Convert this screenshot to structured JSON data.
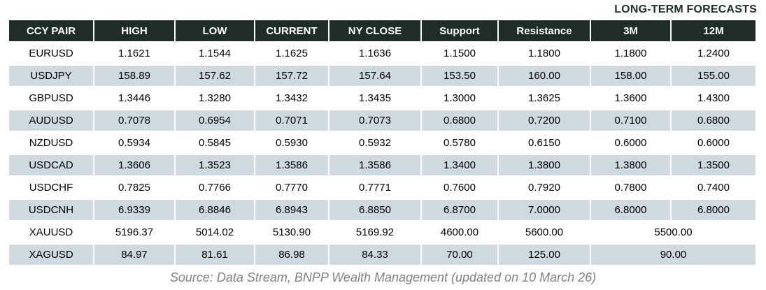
{
  "title": "LONG-TERM FORECASTS",
  "table": {
    "headers": [
      "CCY PAIR",
      "HIGH",
      "LOW",
      "CURRENT",
      "NY CLOSE",
      "Support",
      "Resistance",
      "3M",
      "12M"
    ],
    "rows": [
      {
        "cells": [
          "EURUSD",
          "1.1621",
          "1.1544",
          "1.1625",
          "1.1636",
          "1.1500",
          "1.1800",
          "1.1800",
          "1.2400"
        ],
        "merged_forecast": false
      },
      {
        "cells": [
          "USDJPY",
          "158.89",
          "157.62",
          "157.72",
          "157.64",
          "153.50",
          "160.00",
          "158.00",
          "155.00"
        ],
        "merged_forecast": false
      },
      {
        "cells": [
          "GBPUSD",
          "1.3446",
          "1.3280",
          "1.3432",
          "1.3435",
          "1.3000",
          "1.3625",
          "1.3600",
          "1.4300"
        ],
        "merged_forecast": false
      },
      {
        "cells": [
          "AUDUSD",
          "0.7078",
          "0.6954",
          "0.7071",
          "0.7073",
          "0.6800",
          "0.7200",
          "0.7100",
          "0.6800"
        ],
        "merged_forecast": false
      },
      {
        "cells": [
          "NZDUSD",
          "0.5934",
          "0.5845",
          "0.5930",
          "0.5932",
          "0.5780",
          "0.6150",
          "0.6000",
          "0.6000"
        ],
        "merged_forecast": false
      },
      {
        "cells": [
          "USDCAD",
          "1.3606",
          "1.3523",
          "1.3586",
          "1.3586",
          "1.3400",
          "1.3800",
          "1.3800",
          "1.3500"
        ],
        "merged_forecast": false
      },
      {
        "cells": [
          "USDCHF",
          "0.7825",
          "0.7766",
          "0.7770",
          "0.7771",
          "0.7600",
          "0.7920",
          "0.7800",
          "0.7400"
        ],
        "merged_forecast": false
      },
      {
        "cells": [
          "USDCNH",
          "6.9339",
          "6.8846",
          "6.8943",
          "6.8850",
          "6.8700",
          "7.0000",
          "6.8000",
          "6.8000"
        ],
        "merged_forecast": false
      },
      {
        "cells": [
          "XAUUSD",
          "5196.37",
          "5014.02",
          "5130.90",
          "5169.92",
          "4600.00",
          "5600.00",
          "5500.00"
        ],
        "merged_forecast": true
      },
      {
        "cells": [
          "XAGUSD",
          "84.97",
          "81.61",
          "86.98",
          "84.33",
          "70.00",
          "125.00",
          "90.00"
        ],
        "merged_forecast": true
      }
    ]
  },
  "source": "Source: Data Stream, BNPP Wealth Management (updated on 10 March 26)",
  "colors": {
    "header_bg": "#1e2d2a",
    "header_text": "#ffffff",
    "stripe_bg": "#ced9e0",
    "title_text": "#1e2d2a",
    "source_text": "#808080"
  }
}
